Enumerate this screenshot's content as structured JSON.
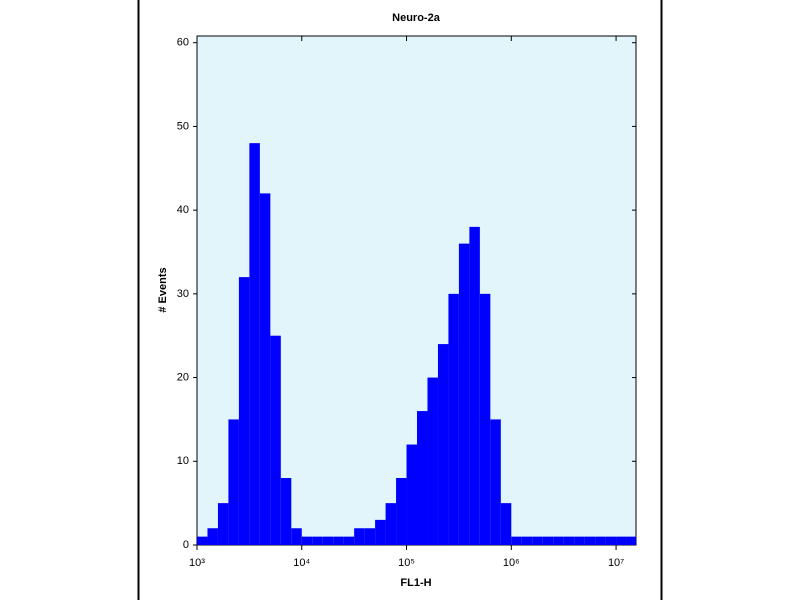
{
  "chart_data": {
    "type": "histogram",
    "title": "Neuro-2a",
    "xlabel": "FL1-H",
    "ylabel": "# Events",
    "xscale": "log",
    "color": "#0000ff",
    "background": "#e2f5fb",
    "bins": [
      1000,
      1259,
      1585,
      1995,
      2512,
      3162,
      3981,
      5012,
      6310,
      7943,
      10000,
      12589,
      15849,
      19953,
      25119,
      31623,
      39811,
      50119,
      63096,
      79433,
      100000,
      125893,
      158489,
      199526,
      251189,
      316228,
      398107,
      501187,
      630957,
      794328,
      1000000,
      1258925,
      1584893,
      1995262,
      2511886,
      3162278,
      3981072,
      5011872,
      6309573,
      7943282,
      10000000,
      12589254,
      15500000
    ],
    "counts": [
      1,
      2,
      5,
      15,
      32,
      48,
      42,
      25,
      8,
      2,
      1,
      1,
      1,
      1,
      1,
      2,
      2,
      3,
      5,
      8,
      12,
      16,
      20,
      24,
      30,
      36,
      38,
      30,
      15,
      5,
      1,
      1,
      1,
      1,
      1,
      1,
      1,
      1,
      1,
      1,
      1,
      1
    ],
    "xlim": [
      1000,
      15500000
    ],
    "xticks": [
      {
        "value": 1000,
        "label": "10³"
      },
      {
        "value": 10000,
        "label": "10⁴"
      },
      {
        "value": 100000,
        "label": "10⁵"
      },
      {
        "value": 1000000,
        "label": "10⁶"
      },
      {
        "value": 10000000,
        "label": "10⁷"
      }
    ],
    "ylim": [
      0,
      60.8
    ],
    "yticks": [
      0,
      10,
      20,
      30,
      40,
      50,
      60
    ]
  }
}
